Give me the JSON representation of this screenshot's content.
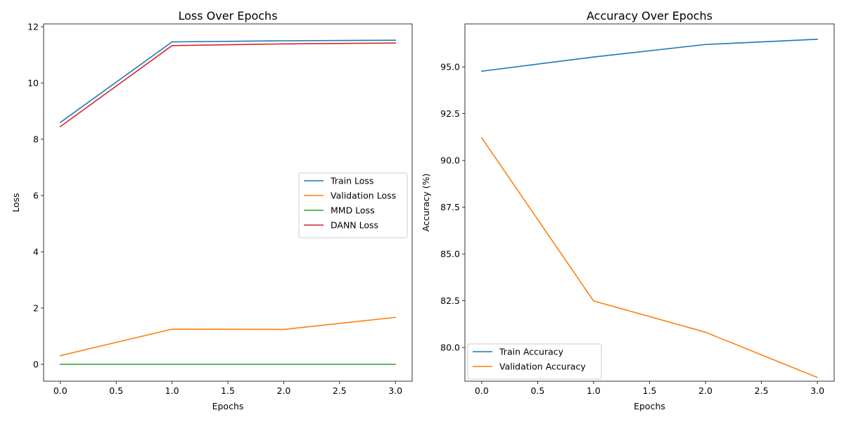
{
  "chart_data": [
    {
      "type": "line",
      "title": "Loss Over Epochs",
      "xlabel": "Epochs",
      "ylabel": "Loss",
      "xlim": [
        -0.15,
        3.15
      ],
      "ylim": [
        -0.6,
        12.1
      ],
      "xticks": [
        0.0,
        0.5,
        1.0,
        1.5,
        2.0,
        2.5,
        3.0
      ],
      "xtick_labels": [
        "0.0",
        "0.5",
        "1.0",
        "1.5",
        "2.0",
        "2.5",
        "3.0"
      ],
      "yticks": [
        0,
        2,
        4,
        6,
        8,
        10,
        12
      ],
      "ytick_labels": [
        "0",
        "2",
        "4",
        "6",
        "8",
        "10",
        "12"
      ],
      "x": [
        0,
        1,
        2,
        3
      ],
      "legend_position": "center-right",
      "series": [
        {
          "name": "Train Loss",
          "color": "#1f77b4",
          "values": [
            8.6,
            11.46,
            11.5,
            11.52
          ]
        },
        {
          "name": "Validation Loss",
          "color": "#ff7f0e",
          "values": [
            0.31,
            1.25,
            1.24,
            1.67
          ]
        },
        {
          "name": "MMD Loss",
          "color": "#2ca02c",
          "values": [
            0.0,
            0.0,
            0.0,
            0.0
          ]
        },
        {
          "name": "DANN Loss",
          "color": "#d62728",
          "values": [
            8.45,
            11.33,
            11.39,
            11.42
          ]
        }
      ]
    },
    {
      "type": "line",
      "title": "Accuracy Over Epochs",
      "xlabel": "Epochs",
      "ylabel": "Accuracy (%)",
      "xlim": [
        -0.15,
        3.15
      ],
      "ylim": [
        78.2,
        97.3
      ],
      "xticks": [
        0.0,
        0.5,
        1.0,
        1.5,
        2.0,
        2.5,
        3.0
      ],
      "xtick_labels": [
        "0.0",
        "0.5",
        "1.0",
        "1.5",
        "2.0",
        "2.5",
        "3.0"
      ],
      "yticks": [
        80.0,
        82.5,
        85.0,
        87.5,
        90.0,
        92.5,
        95.0
      ],
      "ytick_labels": [
        "80.0",
        "82.5",
        "85.0",
        "87.5",
        "90.0",
        "92.5",
        "95.0"
      ],
      "x": [
        0,
        1,
        2,
        3
      ],
      "legend_position": "lower-left",
      "series": [
        {
          "name": "Train Accuracy",
          "color": "#1f77b4",
          "values": [
            94.77,
            95.53,
            96.2,
            96.48
          ]
        },
        {
          "name": "Validation Accuracy",
          "color": "#ff7f0e",
          "values": [
            91.21,
            82.49,
            80.82,
            78.4
          ]
        }
      ]
    }
  ]
}
